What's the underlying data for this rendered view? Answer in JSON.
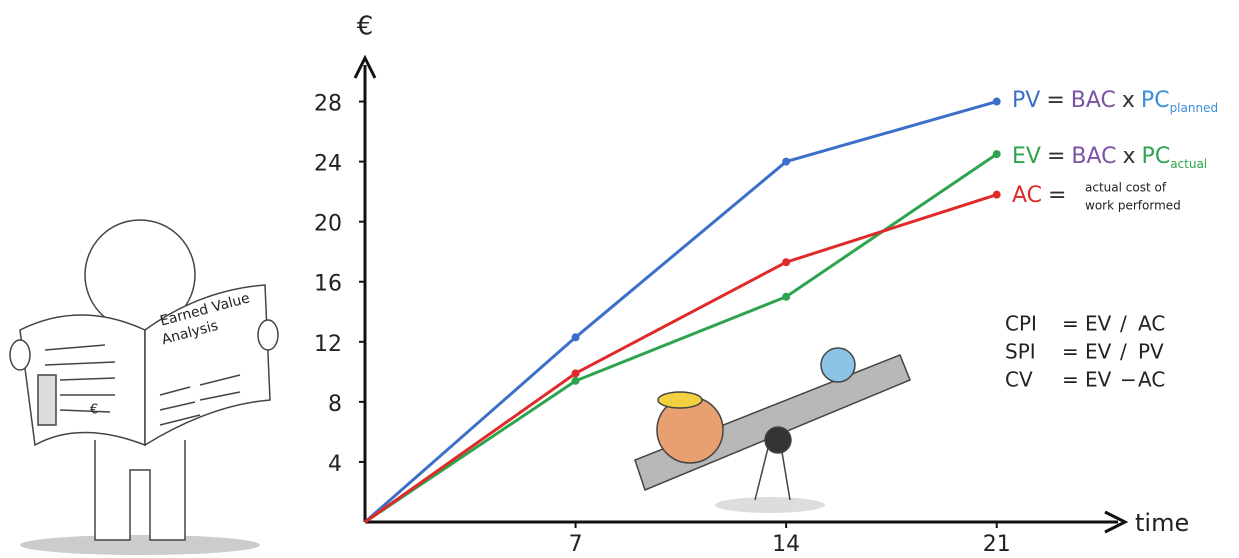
{
  "chart_data": {
    "type": "line",
    "y_label": "€",
    "x_label": "time",
    "x": [
      0,
      7,
      14,
      21
    ],
    "xlim": [
      0,
      24.5
    ],
    "ylim": [
      0,
      30.5
    ],
    "xticks": [
      7,
      14,
      21
    ],
    "yticks": [
      4,
      8,
      12,
      16,
      20,
      24,
      28
    ],
    "series": [
      {
        "name": "PV",
        "color": "#3b6fc9",
        "values": [
          0,
          12.3,
          24,
          28
        ],
        "definition": [
          {
            "text": "=",
            "color": "#333333"
          },
          {
            "text": "BAC",
            "color": "#7b52a6"
          },
          {
            "text": "x",
            "color": "#333333"
          },
          {
            "text": "PC",
            "color": "#3b8fd9"
          },
          {
            "text": "planned",
            "color": "#3b8fd9",
            "sub": true
          }
        ]
      },
      {
        "name": "EV",
        "color": "#2ea44f",
        "values": [
          0,
          9.4,
          15,
          24.5
        ],
        "definition": [
          {
            "text": "=",
            "color": "#333333"
          },
          {
            "text": "BAC",
            "color": "#7b52a6"
          },
          {
            "text": "x",
            "color": "#333333"
          },
          {
            "text": "PC",
            "color": "#2ea44f"
          },
          {
            "text": "actual",
            "color": "#2ea44f",
            "sub": true
          }
        ]
      },
      {
        "name": "AC",
        "color": "#e02a2a",
        "values": [
          0,
          9.9,
          17.3,
          21.8
        ],
        "definition": [
          {
            "text": "=",
            "color": "#333333"
          }
        ],
        "note": [
          "actual cost of",
          "work performed"
        ]
      }
    ],
    "indices": [
      [
        {
          "text": "CPI",
          "color": "#333333"
        },
        {
          "text": "=",
          "color": "#333333"
        },
        {
          "text": "EV",
          "color": "#2ea44f"
        },
        {
          "text": "/",
          "color": "#333333"
        },
        {
          "text": "AC",
          "color": "#e02a2a"
        }
      ],
      [
        {
          "text": "SPI",
          "color": "#333333"
        },
        {
          "text": "=",
          "color": "#333333"
        },
        {
          "text": "EV",
          "color": "#2ea44f"
        },
        {
          "text": "/",
          "color": "#333333"
        },
        {
          "text": "PV",
          "color": "#3b6fc9"
        }
      ],
      [
        {
          "text": "CV",
          "color": "#333333"
        },
        {
          "text": "=",
          "color": "#333333"
        },
        {
          "text": "EV",
          "color": "#2ea44f"
        },
        {
          "text": "−",
          "color": "#333333"
        },
        {
          "text": "AC",
          "color": "#e02a2a"
        }
      ]
    ],
    "illustration_texts": [
      "Earned Value",
      "Analysis",
      "€"
    ]
  }
}
